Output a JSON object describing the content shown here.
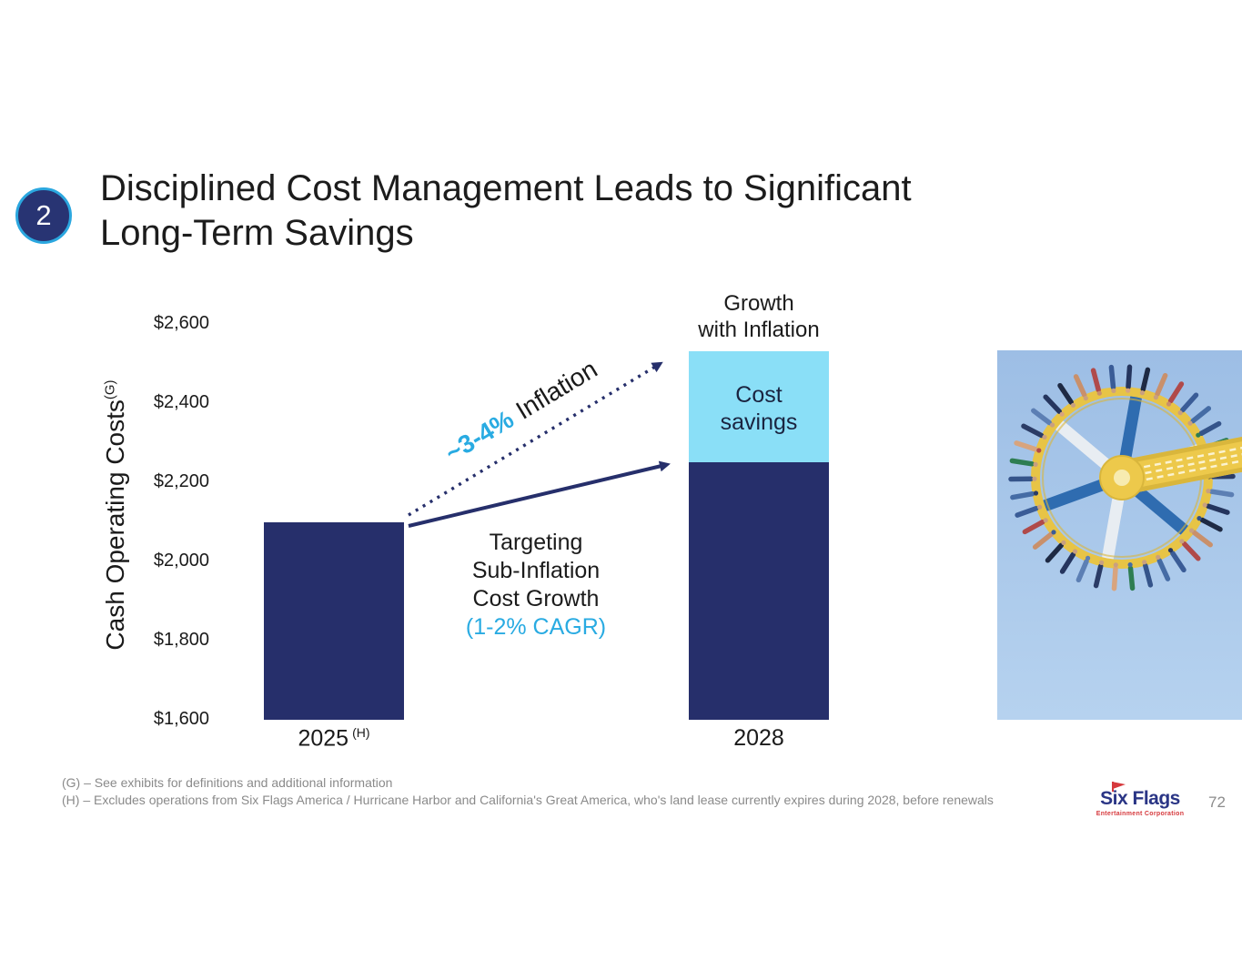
{
  "slide": {
    "badge_number": "2",
    "title_line1": "Disciplined Cost Management Leads to Significant",
    "title_line2": "Long-Term Savings",
    "page_number": "72"
  },
  "chart_data": {
    "type": "bar",
    "stacked": true,
    "ylabel": "Cash Operating Costs",
    "ylabel_superscript": "(G)",
    "ylim": [
      1600,
      2600
    ],
    "y_ticks": [
      2600,
      2400,
      2200,
      2000,
      1800,
      1600
    ],
    "y_tick_labels": [
      "$2,600",
      "$2,400",
      "$2,200",
      "$2,000",
      "$1,800",
      "$1,600"
    ],
    "grid": false,
    "legend": "none",
    "bars": [
      {
        "category": "2025",
        "category_superscript": "(H)",
        "segments": [
          {
            "name": "cash-operating-costs",
            "value_top": 2100,
            "color": "#262F6B"
          }
        ]
      },
      {
        "category": "2028",
        "category_superscript": "",
        "segments": [
          {
            "name": "cash-operating-costs",
            "value_top": 2250,
            "color": "#262F6B"
          },
          {
            "name": "cost-savings",
            "value_top": 2530,
            "color": "#8ADFF7"
          }
        ]
      }
    ],
    "annotations": {
      "growth_label_lines": [
        "Growth",
        "with Inflation"
      ],
      "savings_label_lines": [
        "Cost",
        "savings"
      ],
      "inflation_arrow": {
        "highlight": "~3-4%",
        "label": "Inflation"
      },
      "targeting_lines": [
        "Targeting",
        "Sub-Inflation",
        "Cost Growth"
      ],
      "targeting_accent": "(1-2% CAGR)"
    }
  },
  "footnotes": [
    "(G) – See exhibits for definitions and additional information",
    "(H) – Excludes operations from Six Flags America / Hurricane Harbor and California's Great America, who's land lease currently expires during 2028, before renewals"
  ],
  "logo": {
    "name": "Six Flags",
    "subtitle": "Entertainment Corporation"
  },
  "colors": {
    "navy": "#262F6B",
    "light_blue": "#8ADFF7",
    "accent_cyan": "#29ABE2",
    "badge_fill": "#283473",
    "badge_ring": "#2BA7DF",
    "footnote_gray": "#8A8A8A",
    "logo_navy": "#2A3585",
    "logo_red": "#D6393D"
  }
}
